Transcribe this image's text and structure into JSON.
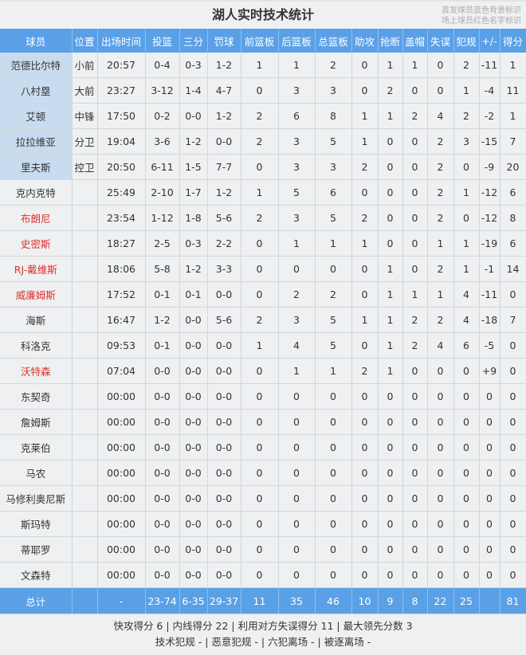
{
  "title": "湖人实时技术统计",
  "legend": [
    "首发球员蓝色背景标识",
    "场上球员红色名字标识"
  ],
  "colors": {
    "header": "#5aa0e6",
    "starter_bg": "#c9dcef",
    "oncourt_name": "#e0302a"
  },
  "columns": [
    "球员",
    "位置",
    "出场时间",
    "投篮",
    "三分",
    "罚球",
    "前篮板",
    "后篮板",
    "总篮板",
    "助攻",
    "抢断",
    "盖帽",
    "失误",
    "犯规",
    "+/-",
    "得分"
  ],
  "players": [
    {
      "starter": true,
      "oncourt": false,
      "cells": [
        "范德比尔特",
        "小前",
        "20:57",
        "0-4",
        "0-3",
        "1-2",
        "1",
        "1",
        "2",
        "0",
        "1",
        "1",
        "0",
        "2",
        "-11",
        "1"
      ]
    },
    {
      "starter": true,
      "oncourt": false,
      "cells": [
        "八村塁",
        "大前",
        "23:27",
        "3-12",
        "1-4",
        "4-7",
        "0",
        "3",
        "3",
        "0",
        "2",
        "0",
        "0",
        "1",
        "-4",
        "11"
      ]
    },
    {
      "starter": true,
      "oncourt": false,
      "cells": [
        "艾顿",
        "中锋",
        "17:50",
        "0-2",
        "0-0",
        "1-2",
        "2",
        "6",
        "8",
        "1",
        "1",
        "2",
        "4",
        "2",
        "-2",
        "1"
      ]
    },
    {
      "starter": true,
      "oncourt": false,
      "cells": [
        "拉拉维亚",
        "分卫",
        "19:04",
        "3-6",
        "1-2",
        "0-0",
        "2",
        "3",
        "5",
        "1",
        "0",
        "0",
        "2",
        "3",
        "-15",
        "7"
      ]
    },
    {
      "starter": true,
      "oncourt": false,
      "cells": [
        "里夫斯",
        "控卫",
        "20:50",
        "6-11",
        "1-5",
        "7-7",
        "0",
        "3",
        "3",
        "2",
        "0",
        "0",
        "2",
        "0",
        "-9",
        "20"
      ]
    },
    {
      "starter": false,
      "oncourt": false,
      "cells": [
        "克内克特",
        "",
        "25:49",
        "2-10",
        "1-7",
        "1-2",
        "1",
        "5",
        "6",
        "0",
        "0",
        "0",
        "2",
        "1",
        "-12",
        "6"
      ]
    },
    {
      "starter": false,
      "oncourt": true,
      "cells": [
        "布朗尼",
        "",
        "23:54",
        "1-12",
        "1-8",
        "5-6",
        "2",
        "3",
        "5",
        "2",
        "0",
        "0",
        "2",
        "0",
        "-12",
        "8"
      ]
    },
    {
      "starter": false,
      "oncourt": true,
      "cells": [
        "史密斯",
        "",
        "18:27",
        "2-5",
        "0-3",
        "2-2",
        "0",
        "1",
        "1",
        "1",
        "0",
        "0",
        "1",
        "1",
        "-19",
        "6"
      ]
    },
    {
      "starter": false,
      "oncourt": true,
      "cells": [
        "RJ-戴维斯",
        "",
        "18:06",
        "5-8",
        "1-2",
        "3-3",
        "0",
        "0",
        "0",
        "0",
        "1",
        "0",
        "2",
        "1",
        "-1",
        "14"
      ]
    },
    {
      "starter": false,
      "oncourt": true,
      "cells": [
        "威廉姆斯",
        "",
        "17:52",
        "0-1",
        "0-1",
        "0-0",
        "0",
        "2",
        "2",
        "0",
        "1",
        "1",
        "1",
        "4",
        "-11",
        "0"
      ]
    },
    {
      "starter": false,
      "oncourt": false,
      "cells": [
        "海斯",
        "",
        "16:47",
        "1-2",
        "0-0",
        "5-6",
        "2",
        "3",
        "5",
        "1",
        "1",
        "2",
        "2",
        "4",
        "-18",
        "7"
      ]
    },
    {
      "starter": false,
      "oncourt": false,
      "cells": [
        "科洛克",
        "",
        "09:53",
        "0-1",
        "0-0",
        "0-0",
        "1",
        "4",
        "5",
        "0",
        "1",
        "2",
        "4",
        "6",
        "-5",
        "0"
      ]
    },
    {
      "starter": false,
      "oncourt": true,
      "cells": [
        "沃特森",
        "",
        "07:04",
        "0-0",
        "0-0",
        "0-0",
        "0",
        "1",
        "1",
        "2",
        "1",
        "0",
        "0",
        "0",
        "+9",
        "0"
      ]
    },
    {
      "starter": false,
      "oncourt": false,
      "cells": [
        "东契奇",
        "",
        "00:00",
        "0-0",
        "0-0",
        "0-0",
        "0",
        "0",
        "0",
        "0",
        "0",
        "0",
        "0",
        "0",
        "0",
        "0"
      ]
    },
    {
      "starter": false,
      "oncourt": false,
      "cells": [
        "詹姆斯",
        "",
        "00:00",
        "0-0",
        "0-0",
        "0-0",
        "0",
        "0",
        "0",
        "0",
        "0",
        "0",
        "0",
        "0",
        "0",
        "0"
      ]
    },
    {
      "starter": false,
      "oncourt": false,
      "cells": [
        "克莱伯",
        "",
        "00:00",
        "0-0",
        "0-0",
        "0-0",
        "0",
        "0",
        "0",
        "0",
        "0",
        "0",
        "0",
        "0",
        "0",
        "0"
      ]
    },
    {
      "starter": false,
      "oncourt": false,
      "cells": [
        "马农",
        "",
        "00:00",
        "0-0",
        "0-0",
        "0-0",
        "0",
        "0",
        "0",
        "0",
        "0",
        "0",
        "0",
        "0",
        "0",
        "0"
      ]
    },
    {
      "starter": false,
      "oncourt": false,
      "cells": [
        "马修利奥尼斯",
        "",
        "00:00",
        "0-0",
        "0-0",
        "0-0",
        "0",
        "0",
        "0",
        "0",
        "0",
        "0",
        "0",
        "0",
        "0",
        "0"
      ]
    },
    {
      "starter": false,
      "oncourt": false,
      "cells": [
        "斯玛特",
        "",
        "00:00",
        "0-0",
        "0-0",
        "0-0",
        "0",
        "0",
        "0",
        "0",
        "0",
        "0",
        "0",
        "0",
        "0",
        "0"
      ]
    },
    {
      "starter": false,
      "oncourt": false,
      "cells": [
        "蒂耶罗",
        "",
        "00:00",
        "0-0",
        "0-0",
        "0-0",
        "0",
        "0",
        "0",
        "0",
        "0",
        "0",
        "0",
        "0",
        "0",
        "0"
      ]
    },
    {
      "starter": false,
      "oncourt": false,
      "cells": [
        "文森特",
        "",
        "00:00",
        "0-0",
        "0-0",
        "0-0",
        "0",
        "0",
        "0",
        "0",
        "0",
        "0",
        "0",
        "0",
        "0",
        "0"
      ]
    }
  ],
  "total": [
    "总计",
    "",
    "-",
    "23-74",
    "6-35",
    "29-37",
    "11",
    "35",
    "46",
    "10",
    "9",
    "8",
    "22",
    "25",
    "",
    "81"
  ],
  "footer": [
    "快攻得分 6 | 内线得分 22 | 利用对方失误得分 11 | 最大领先分数 3",
    "技术犯规 - | 恶意犯规 - | 六犯离场 - | 被逐离场 -"
  ]
}
